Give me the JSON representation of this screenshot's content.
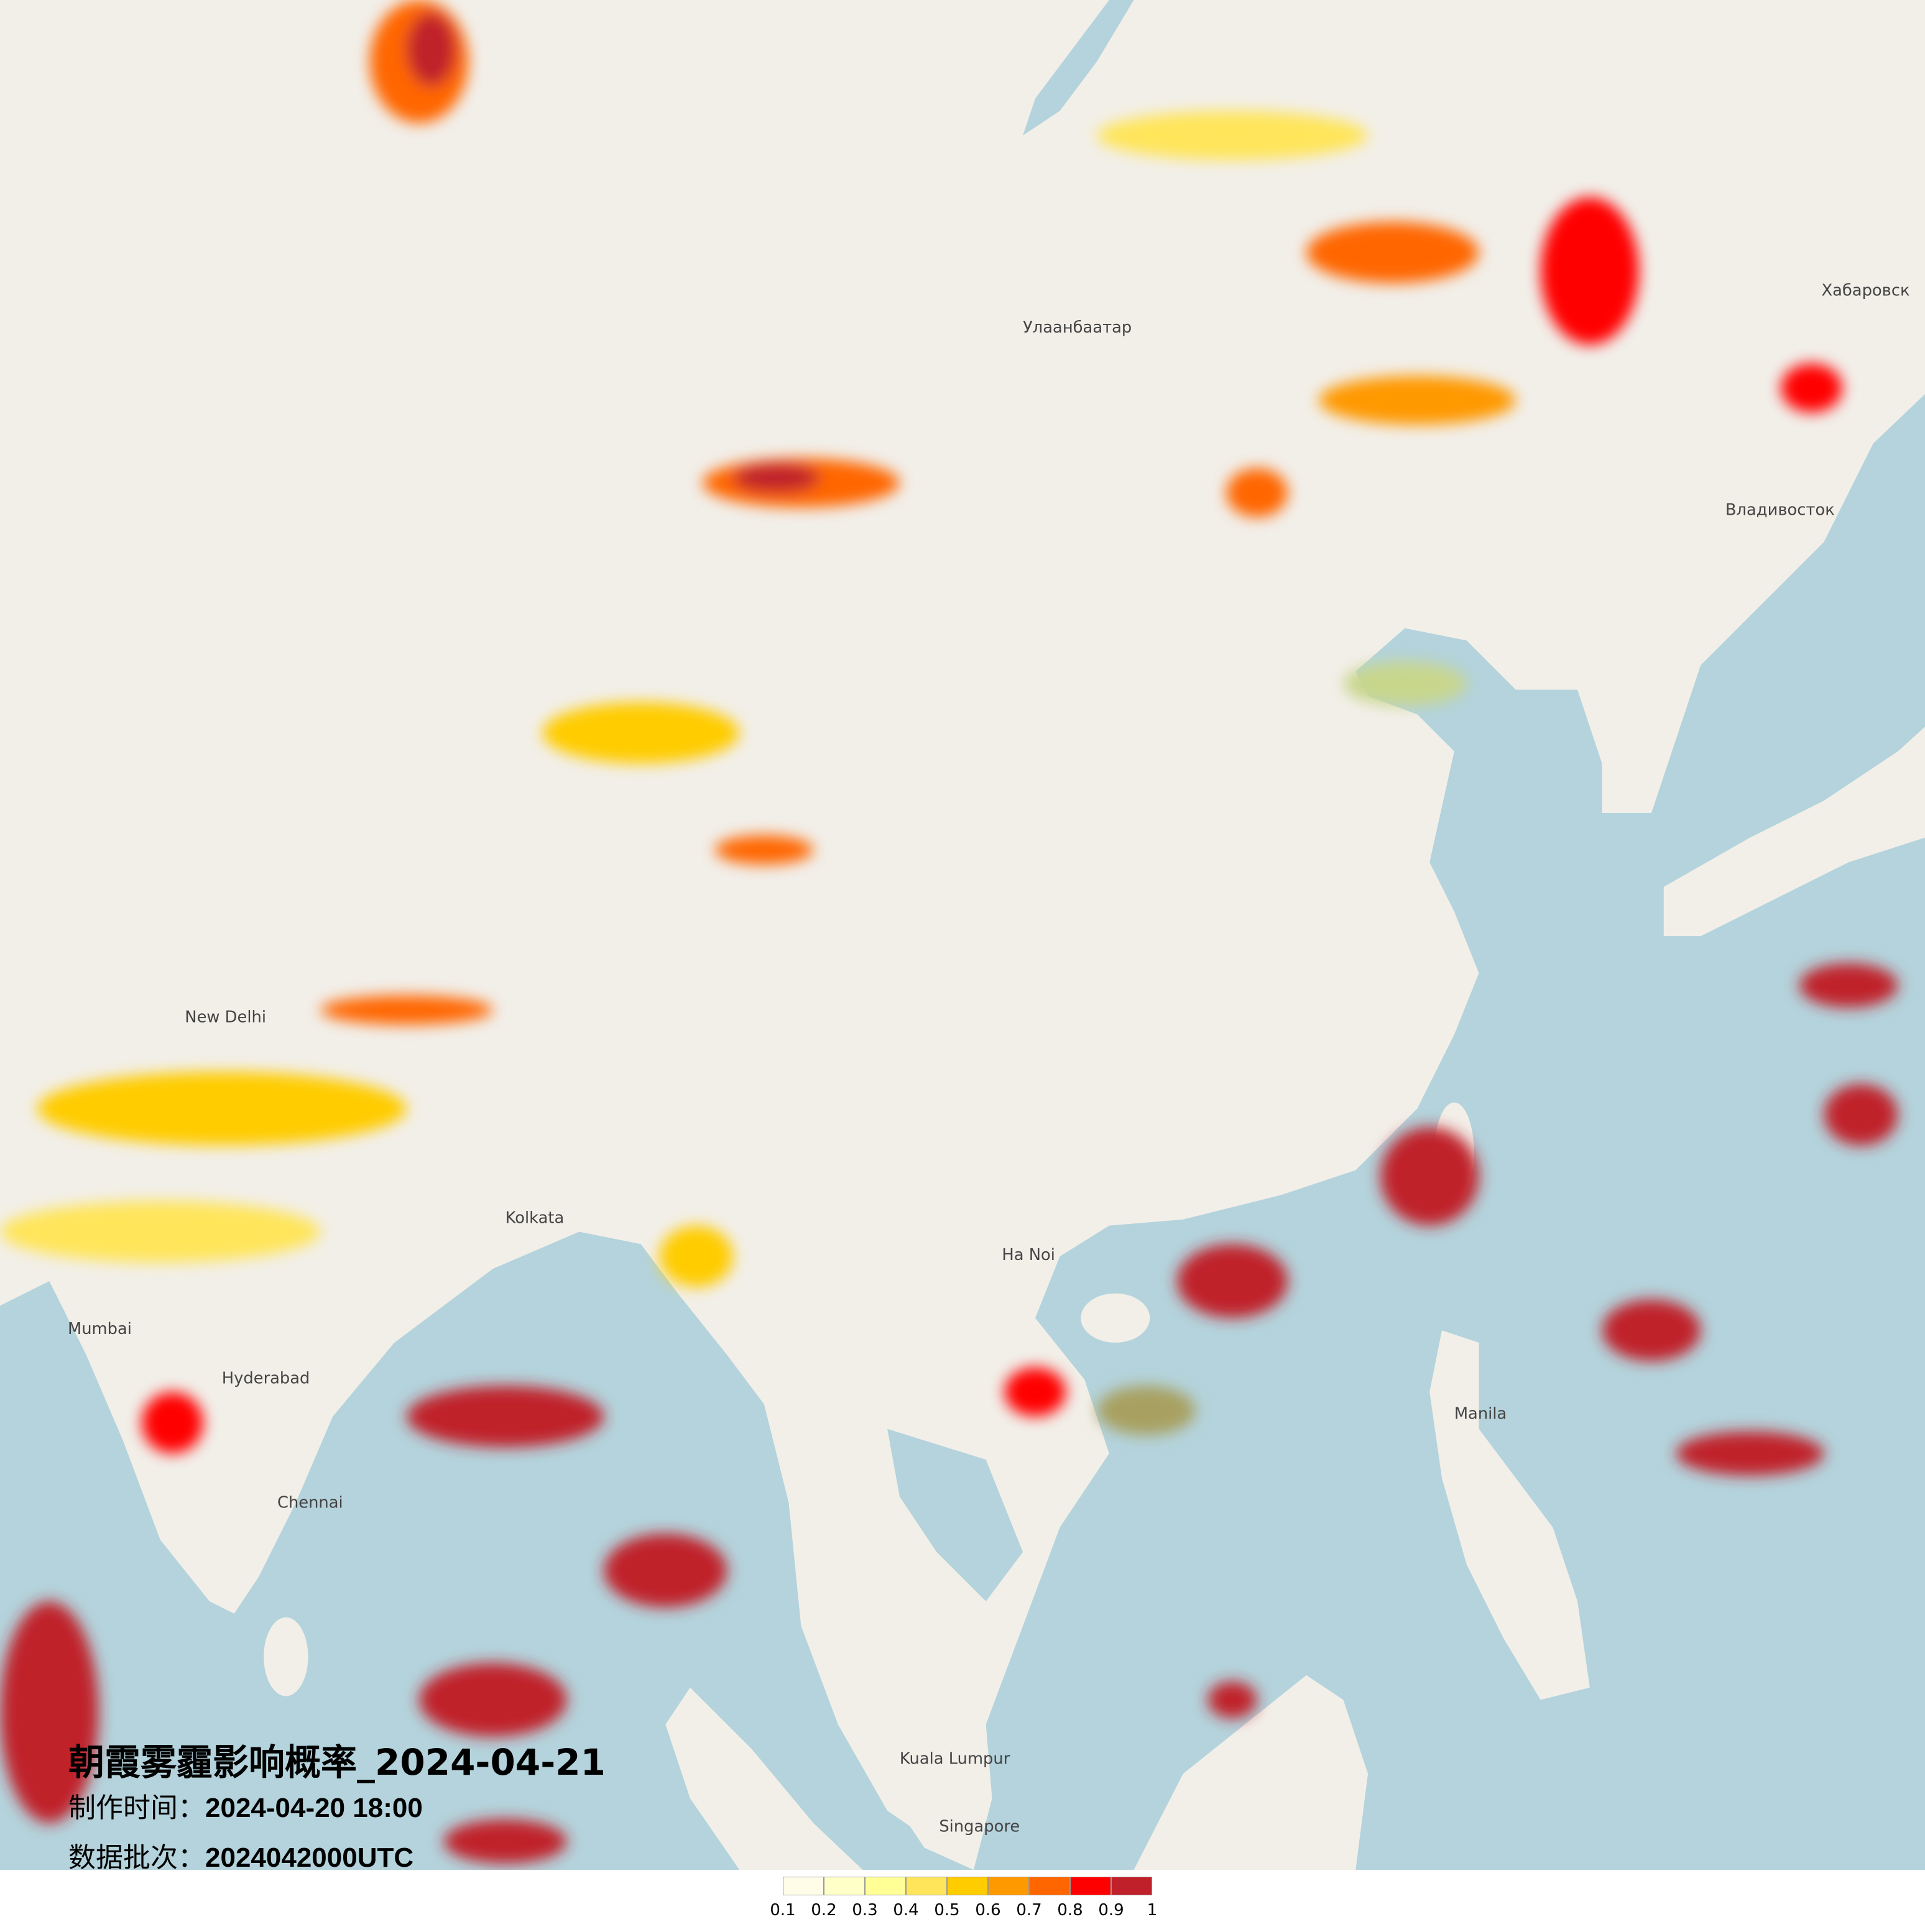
{
  "title": "朝霞雾霾影响概率_2024-04-21",
  "made_time": {
    "label": "制作时间：",
    "value": "2024-04-20 18:00"
  },
  "data_batch": {
    "label": "数据批次：",
    "value": "2024042000UTC"
  },
  "legend": {
    "ticks": [
      "0.1",
      "0.2",
      "0.3",
      "0.4",
      "0.5",
      "0.6",
      "0.7",
      "0.8",
      "0.9",
      "1"
    ],
    "colors": [
      "#fffde8",
      "#ffffc8",
      "#ffff96",
      "#ffe55a",
      "#ffcc00",
      "#ff9900",
      "#ff6600",
      "#ff0000",
      "#c0202a"
    ]
  },
  "map_colors": {
    "land": "#f2efe9",
    "sea": "#b4d3dc"
  },
  "places": [
    "Улаанбаатар",
    "Хабаровск",
    "Владивосток",
    "Kolkata",
    "Mumbai",
    "Ha Noi",
    "Manila",
    "Kuala Lumpur",
    "Singapore",
    "Chennai",
    "Hyderabad",
    "New Delhi"
  ]
}
